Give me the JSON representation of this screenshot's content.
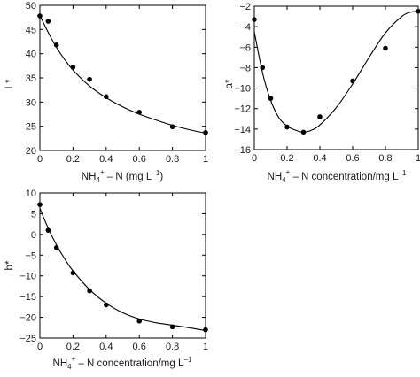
{
  "chart_data": [
    {
      "type": "scatter",
      "id": "L",
      "xlim": [
        0,
        1
      ],
      "ylim": [
        20,
        50
      ],
      "xticks": [
        0,
        0.2,
        0.4,
        0.6,
        0.8,
        1
      ],
      "yticks": [
        20,
        25,
        30,
        35,
        40,
        45,
        50
      ],
      "xtick_labels": [
        "0",
        "0.2",
        "0.4",
        "0.6",
        "0.8",
        "1"
      ],
      "ytick_labels": [
        "20",
        "25",
        "30",
        "35",
        "40",
        "45",
        "50"
      ],
      "xlabel": {
        "pre": "NH",
        "sub": "4",
        "sup": "+",
        "post": " – N (mg L",
        "post_sup": "−1",
        "end": ")"
      },
      "ylabel": {
        "text": "L*"
      },
      "points": [
        [
          0,
          47.8
        ],
        [
          0.05,
          46.7
        ],
        [
          0.1,
          41.8
        ],
        [
          0.2,
          37.2
        ],
        [
          0.3,
          34.7
        ],
        [
          0.4,
          31.1
        ],
        [
          0.6,
          27.9
        ],
        [
          0.8,
          24.9
        ],
        [
          1.0,
          23.7
        ]
      ],
      "fit": [
        [
          0,
          47.9
        ],
        [
          0.05,
          44.4
        ],
        [
          0.1,
          41.3
        ],
        [
          0.15,
          38.8
        ],
        [
          0.2,
          36.6
        ],
        [
          0.3,
          33.3
        ],
        [
          0.4,
          30.9
        ],
        [
          0.5,
          29.0
        ],
        [
          0.6,
          27.5
        ],
        [
          0.7,
          26.3
        ],
        [
          0.8,
          25.2
        ],
        [
          0.9,
          24.3
        ],
        [
          1.0,
          23.6
        ]
      ]
    },
    {
      "type": "scatter",
      "id": "a",
      "xlim": [
        0,
        1
      ],
      "ylim": [
        -16,
        -2
      ],
      "xticks": [
        0,
        0.2,
        0.4,
        0.6,
        0.8,
        1
      ],
      "yticks": [
        -16,
        -14,
        -12,
        -10,
        -8,
        -6,
        -4,
        -2
      ],
      "xtick_labels": [
        "0",
        "0.2",
        "0.4",
        "0.6",
        "0.8",
        "1"
      ],
      "ytick_labels": [
        "−16",
        "−14",
        "−12",
        "−10",
        "−8",
        "−6",
        "−4",
        "−2"
      ],
      "xlabel": {
        "pre": "NH",
        "sub": "4",
        "sup": "+",
        "post": " – N concentration/mg L",
        "post_sup": "−1",
        "end": ""
      },
      "ylabel": {
        "text": "a*"
      },
      "points": [
        [
          0,
          -3.3
        ],
        [
          0.05,
          -8.0
        ],
        [
          0.1,
          -11.0
        ],
        [
          0.2,
          -13.8
        ],
        [
          0.3,
          -14.3
        ],
        [
          0.4,
          -12.8
        ],
        [
          0.6,
          -9.3
        ],
        [
          0.8,
          -6.1
        ],
        [
          1.0,
          -2.5
        ]
      ],
      "fit": [
        [
          0,
          -4.5
        ],
        [
          0.05,
          -8.5
        ],
        [
          0.1,
          -11.2
        ],
        [
          0.15,
          -12.9
        ],
        [
          0.2,
          -13.7
        ],
        [
          0.25,
          -14.1
        ],
        [
          0.3,
          -14.3
        ],
        [
          0.35,
          -14.1
        ],
        [
          0.4,
          -13.6
        ],
        [
          0.5,
          -11.9
        ],
        [
          0.6,
          -9.6
        ],
        [
          0.7,
          -7.0
        ],
        [
          0.8,
          -4.6
        ],
        [
          0.9,
          -3.0
        ],
        [
          0.95,
          -2.6
        ],
        [
          1.0,
          -2.5
        ]
      ]
    },
    {
      "type": "scatter",
      "id": "b",
      "xlim": [
        0,
        1
      ],
      "ylim": [
        -25,
        10
      ],
      "xticks": [
        0,
        0.2,
        0.4,
        0.6,
        0.8,
        1
      ],
      "yticks": [
        -25,
        -20,
        -15,
        -10,
        -5,
        0,
        5,
        10
      ],
      "xtick_labels": [
        "0",
        "0.2",
        "0.4",
        "0.6",
        "0.8",
        "1"
      ],
      "ytick_labels": [
        "−25",
        "−20",
        "−15",
        "−10",
        "−5",
        "0",
        "5",
        "10"
      ],
      "xlabel": {
        "pre": "NH",
        "sub": "4",
        "sup": "+",
        "post": " – N concentration/mg L",
        "post_sup": "−1",
        "end": ""
      },
      "ylabel": {
        "text": "b*"
      },
      "points": [
        [
          0,
          7.2
        ],
        [
          0.05,
          1.0
        ],
        [
          0.1,
          -3.2
        ],
        [
          0.2,
          -9.3
        ],
        [
          0.3,
          -13.6
        ],
        [
          0.4,
          -17.0
        ],
        [
          0.6,
          -20.9
        ],
        [
          0.8,
          -22.3
        ],
        [
          1.0,
          -23.0
        ]
      ],
      "fit": [
        [
          0,
          6.3
        ],
        [
          0.05,
          1.5
        ],
        [
          0.1,
          -2.5
        ],
        [
          0.15,
          -5.9
        ],
        [
          0.2,
          -8.8
        ],
        [
          0.3,
          -13.3
        ],
        [
          0.4,
          -16.6
        ],
        [
          0.5,
          -18.9
        ],
        [
          0.6,
          -20.4
        ],
        [
          0.7,
          -21.3
        ],
        [
          0.8,
          -21.9
        ],
        [
          0.9,
          -22.5
        ],
        [
          1.0,
          -23.2
        ]
      ]
    }
  ]
}
